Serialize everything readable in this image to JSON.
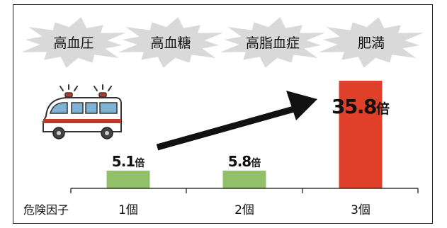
{
  "risk_factors": [
    "高血圧",
    "高血糖",
    "高脂血症",
    "肥満"
  ],
  "chart_data": {
    "type": "bar",
    "x_axis_title": "危険因子",
    "categories": [
      "1個",
      "2個",
      "3個"
    ],
    "values": [
      5.1,
      5.8,
      35.8
    ],
    "value_unit": "倍",
    "value_labels": [
      "5.1",
      "5.8",
      "35.8"
    ],
    "bar_colors": [
      "#92c06a",
      "#92c06a",
      "#e0402a"
    ],
    "ylim": [
      0,
      40
    ],
    "grid": false,
    "legend": "none"
  },
  "colors": {
    "burst_fill": "#d9d9d9",
    "arrow": "#111111",
    "frame": "#222222"
  },
  "icons": [
    "ambulance-icon",
    "arrow-icon",
    "burst-icon"
  ]
}
